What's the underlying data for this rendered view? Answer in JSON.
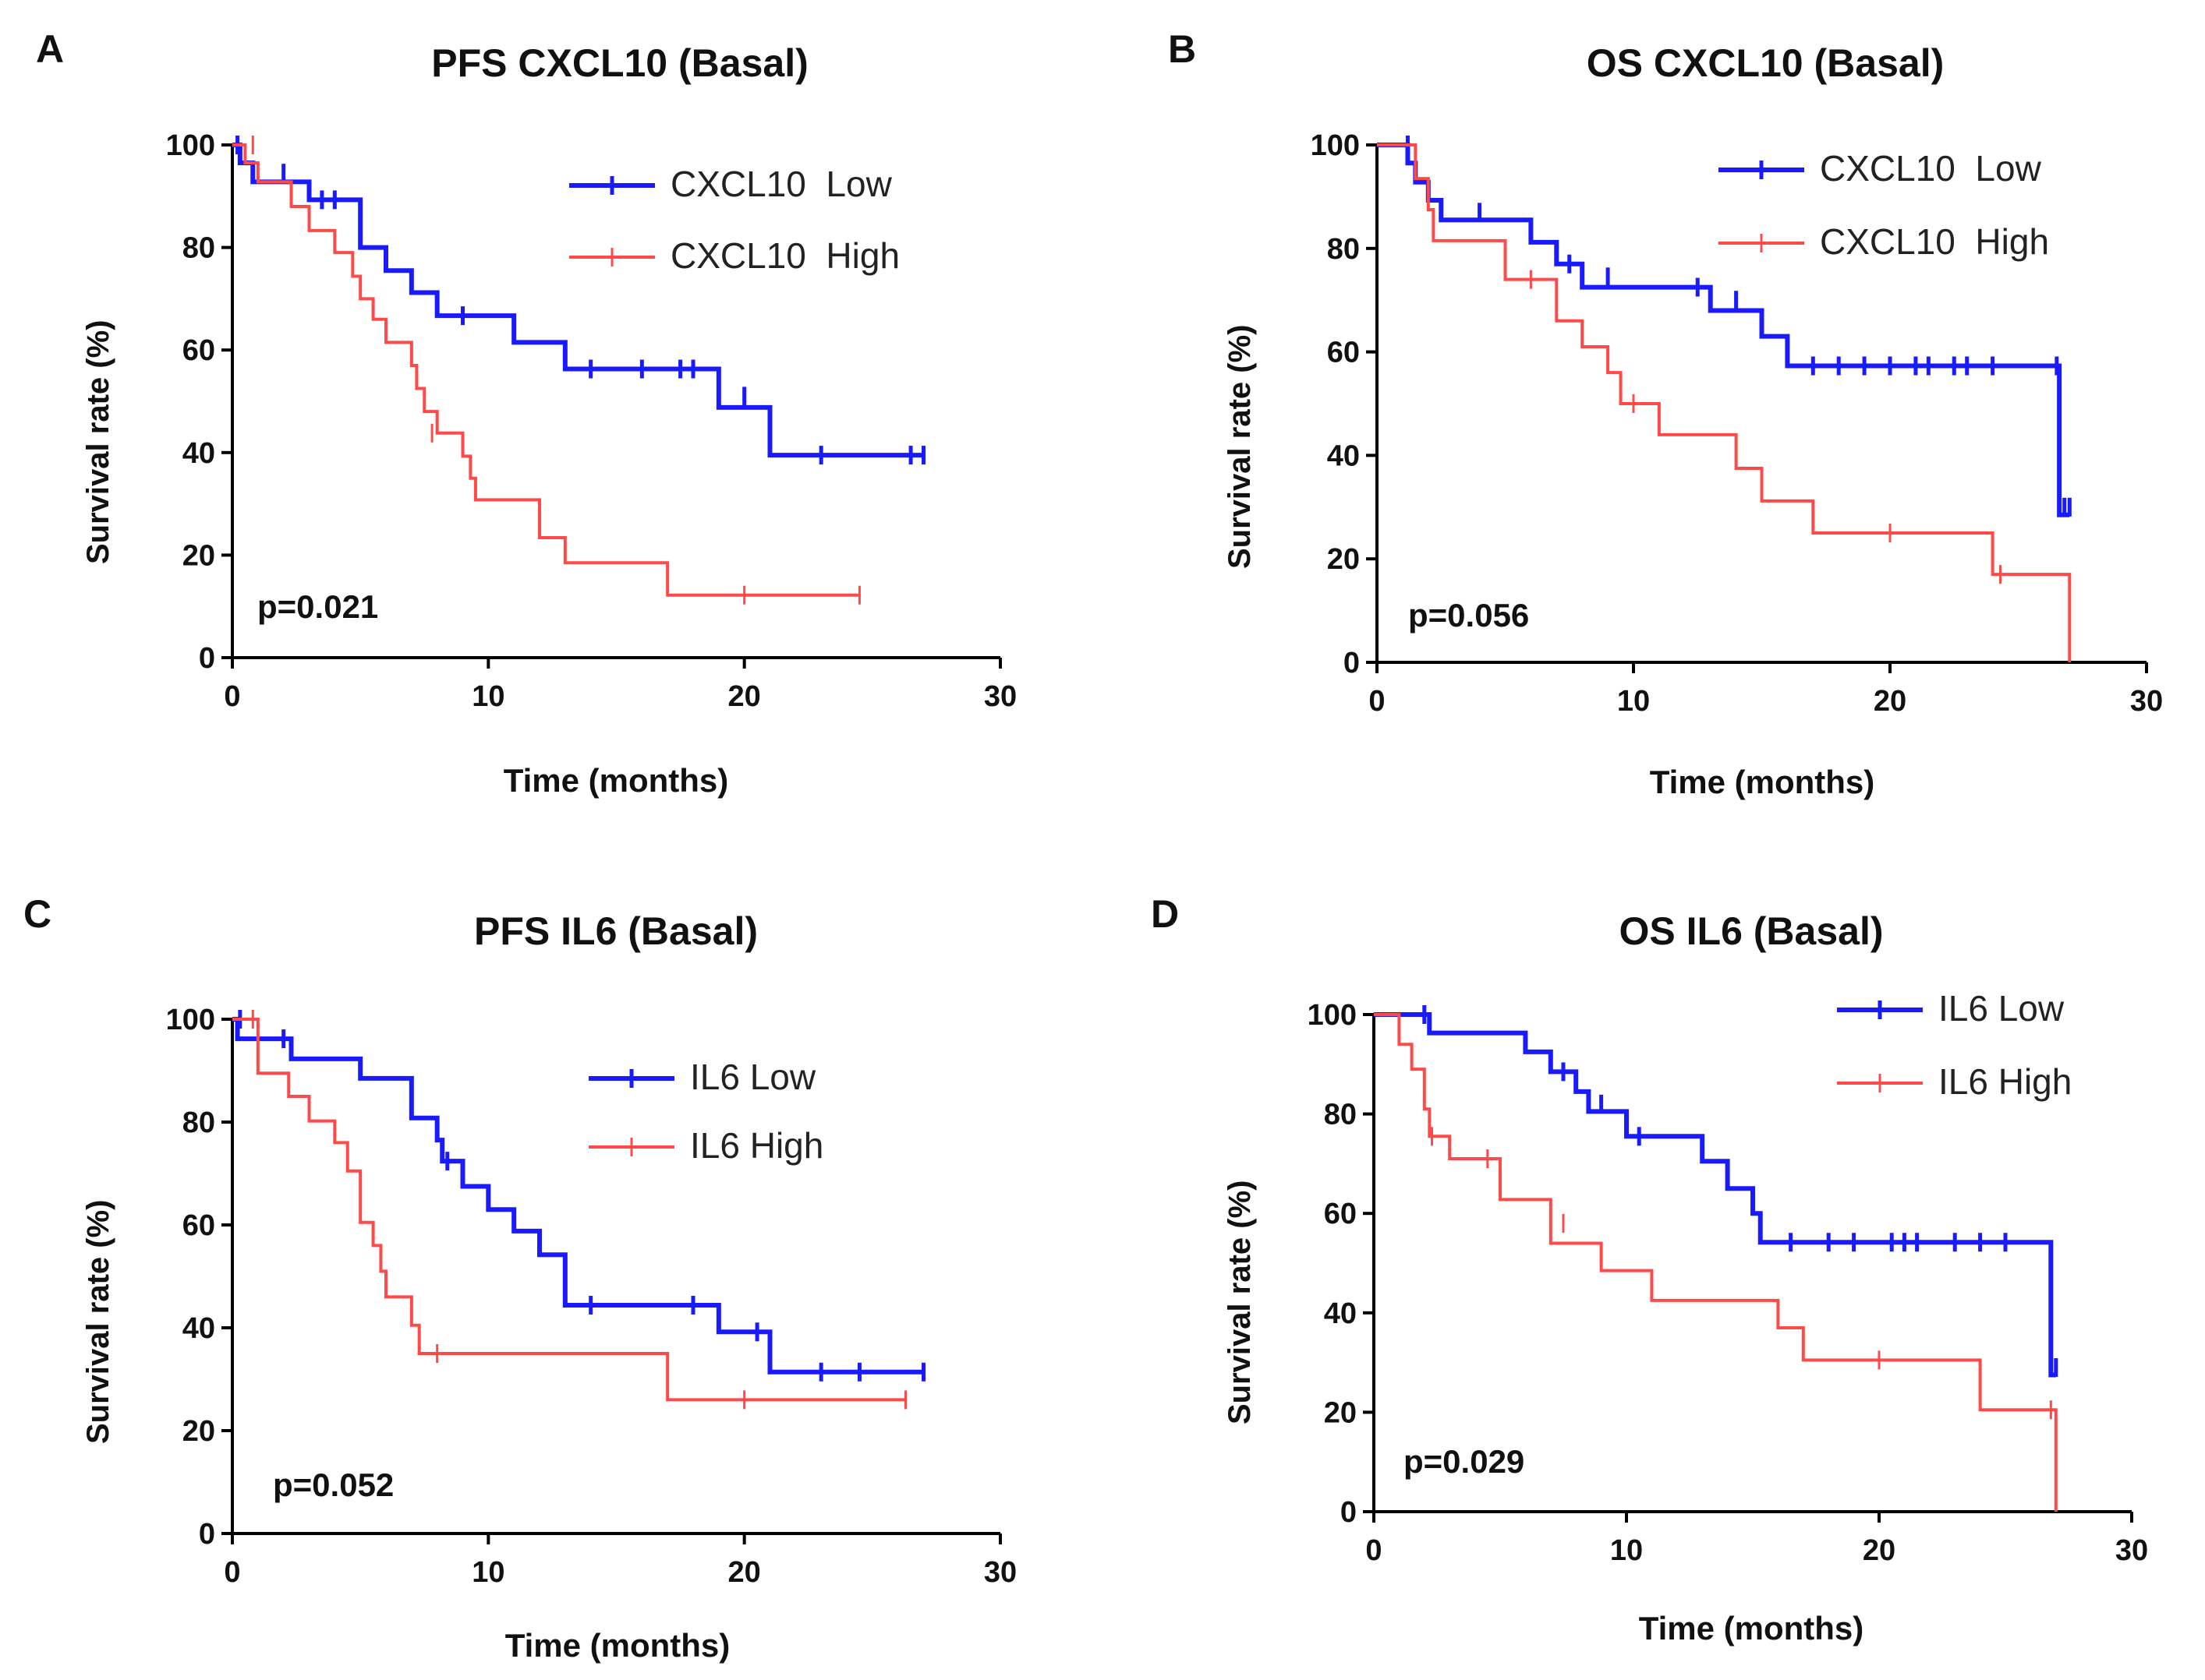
{
  "figure": {
    "colors": {
      "low": "#1a1aff",
      "high": "#ff4a4a",
      "axis": "#000000"
    }
  },
  "chart_data": [
    {
      "type": "line",
      "panel": "A",
      "title": "PFS CXCL10 (Basal)",
      "xlabel": "Time (months)",
      "ylabel": "Survival rate (%)",
      "xlim": [
        0,
        30
      ],
      "ylim": [
        0,
        100
      ],
      "xticks": [
        "0",
        "10",
        "20",
        "30"
      ],
      "yticks": [
        "0",
        "20",
        "40",
        "60",
        "80",
        "100"
      ],
      "pvalue": "p=0.021",
      "legend_position": "top-right",
      "series": [
        {
          "name": "CXCL10  Low",
          "group": "low",
          "steps": [
            [
              0,
              100
            ],
            [
              0.3,
              96.5
            ],
            [
              0.8,
              92.8
            ],
            [
              3,
              89.3
            ],
            [
              5,
              80
            ],
            [
              6,
              75.5
            ],
            [
              7,
              71.2
            ],
            [
              8,
              66.7
            ],
            [
              11,
              61.5
            ],
            [
              13,
              56.3
            ],
            [
              19,
              48.8
            ],
            [
              21,
              39.5
            ],
            [
              27,
              39.5
            ]
          ],
          "censor": [
            [
              0.2,
              100
            ],
            [
              2,
              94.5
            ],
            [
              3.5,
              89.3
            ],
            [
              4,
              89.3
            ],
            [
              9,
              66.7
            ],
            [
              14,
              56.3
            ],
            [
              16,
              56.3
            ],
            [
              17.5,
              56.3
            ],
            [
              18,
              56.3
            ],
            [
              20,
              51
            ],
            [
              23,
              39.5
            ],
            [
              26.5,
              39.5
            ],
            [
              27,
              39.5
            ]
          ]
        },
        {
          "name": "CXCL10  High",
          "group": "high",
          "steps": [
            [
              0,
              100
            ],
            [
              0.5,
              96.5
            ],
            [
              1,
              92.8
            ],
            [
              2.3,
              88
            ],
            [
              3,
              83.3
            ],
            [
              4,
              79
            ],
            [
              4.7,
              74.4
            ],
            [
              5,
              70
            ],
            [
              5.5,
              66
            ],
            [
              6,
              61.5
            ],
            [
              7,
              57
            ],
            [
              7.2,
              52.5
            ],
            [
              7.5,
              48
            ],
            [
              8,
              43.8
            ],
            [
              9,
              39.3
            ],
            [
              9.3,
              35
            ],
            [
              9.5,
              30.8
            ],
            [
              12,
              23.4
            ],
            [
              13,
              18.5
            ],
            [
              17,
              12.2
            ],
            [
              24.5,
              12.2
            ]
          ],
          "censor": [
            [
              0.8,
              100
            ],
            [
              7.8,
              43.8
            ],
            [
              20,
              12.2
            ],
            [
              24.5,
              12.2
            ]
          ]
        }
      ]
    },
    {
      "type": "line",
      "panel": "B",
      "title": "OS CXCL10 (Basal)",
      "xlabel": "Time (months)",
      "ylabel": "Survival rate (%)",
      "xlim": [
        0,
        30
      ],
      "ylim": [
        0,
        100
      ],
      "xticks": [
        "0",
        "10",
        "20",
        "30"
      ],
      "yticks": [
        "0",
        "20",
        "40",
        "60",
        "80",
        "100"
      ],
      "pvalue": "p=0.056",
      "legend_position": "top-right",
      "series": [
        {
          "name": "CXCL10  Low",
          "group": "low",
          "steps": [
            [
              0,
              100
            ],
            [
              1.2,
              96.5
            ],
            [
              1.5,
              92.8
            ],
            [
              2,
              89.3
            ],
            [
              2.5,
              85.5
            ],
            [
              6,
              81.2
            ],
            [
              7,
              77
            ],
            [
              8,
              72.5
            ],
            [
              13,
              68
            ],
            [
              15,
              63
            ],
            [
              16,
              57.3
            ],
            [
              26.5,
              57.3
            ],
            [
              26.6,
              28.5
            ],
            [
              27,
              28.5
            ]
          ],
          "censor": [
            [
              1.2,
              100
            ],
            [
              4,
              87
            ],
            [
              7.5,
              77
            ],
            [
              9,
              74.5
            ],
            [
              12.5,
              72.5
            ],
            [
              14,
              70
            ],
            [
              17,
              57.3
            ],
            [
              18,
              57.3
            ],
            [
              19,
              57.3
            ],
            [
              20,
              57.3
            ],
            [
              21,
              57.3
            ],
            [
              21.5,
              57.3
            ],
            [
              22.5,
              57.3
            ],
            [
              23,
              57.3
            ],
            [
              24,
              57.3
            ],
            [
              26.5,
              57.3
            ],
            [
              26.8,
              30
            ],
            [
              27,
              30
            ]
          ]
        },
        {
          "name": "CXCL10  High",
          "group": "high",
          "steps": [
            [
              0,
              100
            ],
            [
              1.5,
              93.5
            ],
            [
              2,
              87.5
            ],
            [
              2.2,
              81.5
            ],
            [
              5,
              74
            ],
            [
              7,
              66
            ],
            [
              8,
              61
            ],
            [
              9,
              56
            ],
            [
              9.5,
              50
            ],
            [
              11,
              44
            ],
            [
              14,
              37.5
            ],
            [
              15,
              31.2
            ],
            [
              17,
              25
            ],
            [
              24,
              17
            ],
            [
              27,
              17
            ],
            [
              27,
              0
            ]
          ],
          "censor": [
            [
              6,
              74
            ],
            [
              10,
              50
            ],
            [
              20,
              25
            ],
            [
              24.3,
              17
            ]
          ]
        }
      ]
    },
    {
      "type": "line",
      "panel": "C",
      "title": "PFS IL6 (Basal)",
      "xlabel": "Time (months)",
      "ylabel": "Survival rate  (%)",
      "xlim": [
        0,
        30
      ],
      "ylim": [
        0,
        100
      ],
      "xticks": [
        "0",
        "10",
        "20",
        "30"
      ],
      "yticks": [
        "0",
        "20",
        "40",
        "60",
        "80",
        "100"
      ],
      "pvalue": "p=0.052",
      "legend_position": "top-right",
      "series": [
        {
          "name": "IL6 Low",
          "group": "low",
          "steps": [
            [
              0,
              100
            ],
            [
              0.2,
              96.2
            ],
            [
              2.3,
              92.3
            ],
            [
              5,
              88.5
            ],
            [
              7,
              80.8
            ],
            [
              8,
              76.5
            ],
            [
              8.2,
              72.4
            ],
            [
              9,
              67.5
            ],
            [
              10,
              63
            ],
            [
              11,
              58.8
            ],
            [
              12,
              54.2
            ],
            [
              13,
              44.4
            ],
            [
              19,
              39.2
            ],
            [
              21,
              31.4
            ],
            [
              27,
              31.4
            ]
          ],
          "censor": [
            [
              0.3,
              100
            ],
            [
              2,
              96.2
            ],
            [
              8.4,
              72.4
            ],
            [
              14,
              44.4
            ],
            [
              18,
              44.4
            ],
            [
              20.5,
              39.2
            ],
            [
              23,
              31.4
            ],
            [
              24.5,
              31.4
            ],
            [
              27,
              31.4
            ]
          ]
        },
        {
          "name": "IL6 High",
          "group": "high",
          "steps": [
            [
              0,
              100
            ],
            [
              1,
              89.5
            ],
            [
              2.2,
              85
            ],
            [
              3,
              80.2
            ],
            [
              4,
              76
            ],
            [
              4.5,
              70.5
            ],
            [
              5,
              60.5
            ],
            [
              5.5,
              56
            ],
            [
              5.8,
              51
            ],
            [
              6,
              46
            ],
            [
              7,
              40.5
            ],
            [
              7.3,
              35
            ],
            [
              17,
              26
            ],
            [
              26.3,
              26
            ]
          ],
          "censor": [
            [
              0.8,
              100
            ],
            [
              8,
              35
            ],
            [
              20,
              26
            ],
            [
              26.3,
              26
            ]
          ]
        }
      ]
    },
    {
      "type": "line",
      "panel": "D",
      "title": "OS IL6 (Basal)",
      "xlabel": "Time (months)",
      "ylabel": "Survival rate (%)",
      "xlim": [
        0,
        30
      ],
      "ylim": [
        0,
        100
      ],
      "xticks": [
        "0",
        "10",
        "20",
        "30"
      ],
      "yticks": [
        "0",
        "20",
        "40",
        "60",
        "80",
        "100"
      ],
      "pvalue": "p=0.029",
      "legend_position": "top-right",
      "series": [
        {
          "name": "IL6 Low",
          "group": "low",
          "steps": [
            [
              0,
              100
            ],
            [
              2.2,
              96.3
            ],
            [
              6,
              92.5
            ],
            [
              7,
              88.5
            ],
            [
              8,
              84.5
            ],
            [
              8.5,
              80.5
            ],
            [
              10,
              75.5
            ],
            [
              13,
              70.5
            ],
            [
              14,
              65
            ],
            [
              15,
              60
            ],
            [
              15.3,
              54.2
            ],
            [
              26.7,
              54.2
            ],
            [
              26.8,
              27.5
            ],
            [
              27,
              27.5
            ]
          ],
          "censor": [
            [
              2,
              100
            ],
            [
              7.5,
              88.5
            ],
            [
              9,
              82
            ],
            [
              10.5,
              75.5
            ],
            [
              16.5,
              54.2
            ],
            [
              18,
              54.2
            ],
            [
              19,
              54.2
            ],
            [
              20.5,
              54.2
            ],
            [
              21,
              54.2
            ],
            [
              21.5,
              54.2
            ],
            [
              23,
              54.2
            ],
            [
              24,
              54.2
            ],
            [
              25,
              54.2
            ],
            [
              27,
              29
            ]
          ]
        },
        {
          "name": "IL6 High",
          "group": "high",
          "steps": [
            [
              0,
              100
            ],
            [
              1,
              94
            ],
            [
              1.5,
              89
            ],
            [
              2,
              81
            ],
            [
              2.2,
              75.5
            ],
            [
              3,
              71
            ],
            [
              5,
              62.8
            ],
            [
              7,
              54
            ],
            [
              9,
              48.5
            ],
            [
              11,
              42.5
            ],
            [
              16,
              37
            ],
            [
              17,
              30.5
            ],
            [
              24,
              20.5
            ],
            [
              27,
              20.5
            ],
            [
              27,
              0
            ]
          ],
          "censor": [
            [
              2.3,
              75.5
            ],
            [
              4.5,
              71
            ],
            [
              7.5,
              58
            ],
            [
              20,
              30.5
            ],
            [
              26.8,
              20.5
            ]
          ]
        }
      ]
    }
  ]
}
